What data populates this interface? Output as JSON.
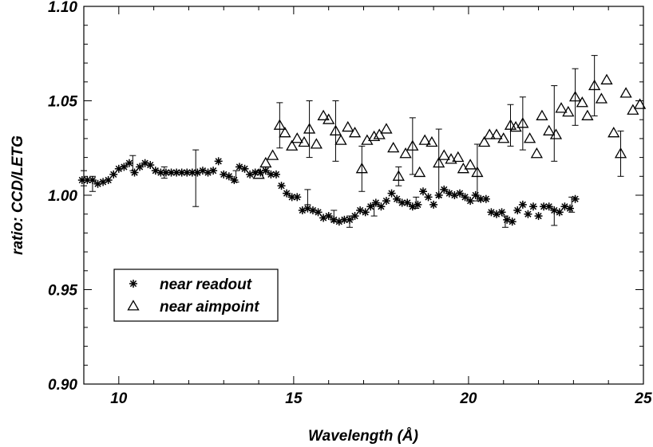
{
  "chart_data": {
    "type": "scatter",
    "title": "",
    "xlabel": "Wavelength (Å)",
    "ylabel": "ratio: CCD/LETG",
    "xlim": [
      9,
      25
    ],
    "ylim": [
      0.9,
      1.1
    ],
    "xticks": [
      10,
      15,
      20,
      25
    ],
    "yticks": [
      0.9,
      0.95,
      1.0,
      1.05,
      1.1
    ],
    "ytick_labels": [
      "0.90",
      "0.95",
      "1.00",
      "1.05",
      "1.10"
    ],
    "legend_position": "lower-left",
    "series": [
      {
        "name": "near readout",
        "marker": "asterisk",
        "points": [
          [
            9.1,
            1.004
          ],
          [
            9.25,
            1.005
          ],
          [
            9.4,
            1.007
          ],
          [
            9.55,
            1.01
          ],
          [
            9.7,
            1.009
          ],
          [
            9.85,
            1.008
          ],
          [
            10.0,
            1.008
          ],
          [
            10.15,
            1.008
          ],
          [
            10.3,
            1.006
          ],
          [
            10.45,
            1.007
          ],
          [
            10.6,
            1.008
          ],
          [
            10.75,
            1.011
          ],
          [
            10.9,
            1.014
          ],
          [
            11.05,
            1.015
          ],
          [
            11.2,
            1.017
          ],
          [
            11.35,
            1.012
          ],
          [
            11.5,
            1.015
          ],
          [
            11.65,
            1.017
          ],
          [
            11.8,
            1.016
          ],
          [
            11.95,
            1.013
          ],
          [
            12.1,
            1.012
          ],
          [
            12.25,
            1.012
          ],
          [
            12.4,
            1.012
          ],
          [
            12.55,
            1.012
          ],
          [
            12.7,
            1.012
          ],
          [
            12.85,
            1.012
          ],
          [
            13.0,
            1.012
          ],
          [
            13.15,
            1.012
          ],
          [
            13.3,
            1.013
          ],
          [
            13.45,
            1.012
          ],
          [
            13.6,
            1.013
          ],
          [
            13.75,
            1.018
          ],
          [
            13.9,
            1.011
          ],
          [
            14.05,
            1.01
          ],
          [
            14.2,
            1.008
          ],
          [
            14.35,
            1.015
          ],
          [
            14.5,
            1.014
          ],
          [
            14.65,
            1.011
          ],
          [
            14.8,
            1.012
          ],
          [
            14.95,
            1.012
          ],
          [
            15.1,
            1.013
          ],
          [
            15.25,
            1.011
          ],
          [
            15.4,
            1.011
          ],
          [
            15.55,
            1.005
          ],
          [
            15.7,
            1.001
          ],
          [
            15.85,
            0.999
          ],
          [
            16.0,
            0.999
          ],
          [
            16.15,
            0.992
          ],
          [
            16.3,
            0.993
          ],
          [
            16.45,
            0.992
          ],
          [
            16.6,
            0.991
          ],
          [
            16.75,
            0.988
          ],
          [
            16.9,
            0.989
          ],
          [
            17.05,
            0.987
          ],
          [
            17.2,
            0.986
          ],
          [
            17.35,
            0.987
          ],
          [
            17.5,
            0.987
          ],
          [
            17.65,
            0.989
          ],
          [
            17.8,
            0.992
          ],
          [
            17.95,
            0.991
          ],
          [
            18.1,
            0.994
          ],
          [
            18.25,
            0.996
          ],
          [
            18.4,
            0.994
          ],
          [
            18.55,
            0.997
          ],
          [
            18.7,
            1.001
          ],
          [
            18.85,
            0.998
          ],
          [
            19.0,
            0.996
          ],
          [
            19.15,
            0.996
          ],
          [
            19.3,
            0.994
          ],
          [
            19.45,
            0.995
          ],
          [
            19.6,
            1.002
          ],
          [
            19.75,
            0.999
          ],
          [
            19.9,
            0.995
          ],
          [
            20.05,
            1.0
          ],
          [
            20.2,
            1.003
          ],
          [
            20.35,
            1.001
          ],
          [
            20.5,
            1.0
          ],
          [
            20.65,
            1.001
          ],
          [
            20.8,
            0.999
          ],
          [
            20.95,
            0.997
          ],
          [
            21.1,
            1.0
          ],
          [
            21.25,
            0.998
          ],
          [
            21.4,
            0.998
          ],
          [
            21.55,
            0.991
          ],
          [
            21.7,
            0.99
          ],
          [
            21.85,
            0.991
          ],
          [
            22.0,
            0.987
          ],
          [
            22.15,
            0.986
          ],
          [
            22.3,
            0.992
          ],
          [
            22.45,
            0.995
          ],
          [
            22.6,
            0.99
          ],
          [
            22.75,
            0.994
          ],
          [
            22.9,
            0.989
          ],
          [
            23.05,
            0.994
          ],
          [
            23.2,
            0.994
          ],
          [
            23.35,
            0.992
          ],
          [
            23.5,
            0.991
          ],
          [
            23.65,
            0.994
          ],
          [
            23.8,
            0.993
          ],
          [
            23.95,
            0.998
          ]
        ],
        "x_shift": -0.9,
        "errors": [
          [
            9.9,
            1.009,
            0.004
          ],
          [
            10.15,
            1.006,
            0.004
          ],
          [
            11.3,
            1.017,
            0.004
          ],
          [
            12.2,
            1.012,
            0.003
          ],
          [
            13.1,
            1.009,
            0.015
          ],
          [
            14.25,
            1.01,
            0.003
          ],
          [
            16.3,
            0.999,
            0.004
          ],
          [
            17.05,
            0.989,
            0.003
          ],
          [
            17.5,
            0.986,
            0.003
          ],
          [
            18.2,
            0.992,
            0.003
          ],
          [
            19.4,
            0.996,
            0.003
          ],
          [
            21.95,
            0.986,
            0.003
          ],
          [
            23.35,
            0.988,
            0.004
          ],
          [
            23.85,
            0.995,
            0.004
          ]
        ]
      },
      {
        "name": "near aimpoint",
        "marker": "triangle",
        "points": [
          [
            13.1,
            1.011
          ],
          [
            13.3,
            1.017
          ],
          [
            13.5,
            1.021
          ],
          [
            13.7,
            1.037
          ],
          [
            13.85,
            1.033
          ],
          [
            14.05,
            1.026
          ],
          [
            14.2,
            1.03
          ],
          [
            14.4,
            1.028
          ],
          [
            14.55,
            1.035
          ],
          [
            14.75,
            1.027
          ],
          [
            14.95,
            1.042
          ],
          [
            15.1,
            1.04
          ],
          [
            15.3,
            1.034
          ],
          [
            15.45,
            1.029
          ],
          [
            15.65,
            1.036
          ],
          [
            15.85,
            1.033
          ],
          [
            16.05,
            1.014
          ],
          [
            16.2,
            1.029
          ],
          [
            16.4,
            1.031
          ],
          [
            16.55,
            1.032
          ],
          [
            16.75,
            1.035
          ],
          [
            16.95,
            1.025
          ],
          [
            17.1,
            1.01
          ],
          [
            17.3,
            1.022
          ],
          [
            17.5,
            1.026
          ],
          [
            17.7,
            1.012
          ],
          [
            17.85,
            1.029
          ],
          [
            18.05,
            1.028
          ],
          [
            18.25,
            1.017
          ],
          [
            18.4,
            1.021
          ],
          [
            18.6,
            1.019
          ],
          [
            18.8,
            1.02
          ],
          [
            18.95,
            1.014
          ],
          [
            19.15,
            1.016
          ],
          [
            19.35,
            1.012
          ],
          [
            19.55,
            1.028
          ],
          [
            19.7,
            1.032
          ],
          [
            19.9,
            1.032
          ],
          [
            20.1,
            1.03
          ],
          [
            20.3,
            1.037
          ],
          [
            20.45,
            1.036
          ],
          [
            20.65,
            1.038
          ],
          [
            20.85,
            1.03
          ],
          [
            21.05,
            1.022
          ],
          [
            21.2,
            1.042
          ],
          [
            21.4,
            1.034
          ],
          [
            21.6,
            1.032
          ],
          [
            21.75,
            1.046
          ],
          [
            21.95,
            1.044
          ],
          [
            22.15,
            1.052
          ],
          [
            22.35,
            1.049
          ],
          [
            22.5,
            1.042
          ],
          [
            22.7,
            1.058
          ],
          [
            22.9,
            1.051
          ],
          [
            23.05,
            1.061
          ],
          [
            23.25,
            1.033
          ],
          [
            23.45,
            1.022
          ],
          [
            23.6,
            1.054
          ],
          [
            23.8,
            1.045
          ],
          [
            24.0,
            1.048
          ]
        ],
        "x_shift": 0.9,
        "errors": [
          [
            13.7,
            1.037,
            0.012
          ],
          [
            14.55,
            1.035,
            0.015
          ],
          [
            15.3,
            1.034,
            0.016
          ],
          [
            16.05,
            1.014,
            0.012
          ],
          [
            17.1,
            1.01,
            0.005
          ],
          [
            17.5,
            1.026,
            0.015
          ],
          [
            18.25,
            1.017,
            0.018
          ],
          [
            19.35,
            1.012,
            0.015
          ],
          [
            20.3,
            1.037,
            0.011
          ],
          [
            20.65,
            1.038,
            0.014
          ],
          [
            21.55,
            1.038,
            0.02
          ],
          [
            22.15,
            1.052,
            0.015
          ],
          [
            22.7,
            1.058,
            0.016
          ],
          [
            23.45,
            1.022,
            0.012
          ]
        ]
      }
    ]
  }
}
